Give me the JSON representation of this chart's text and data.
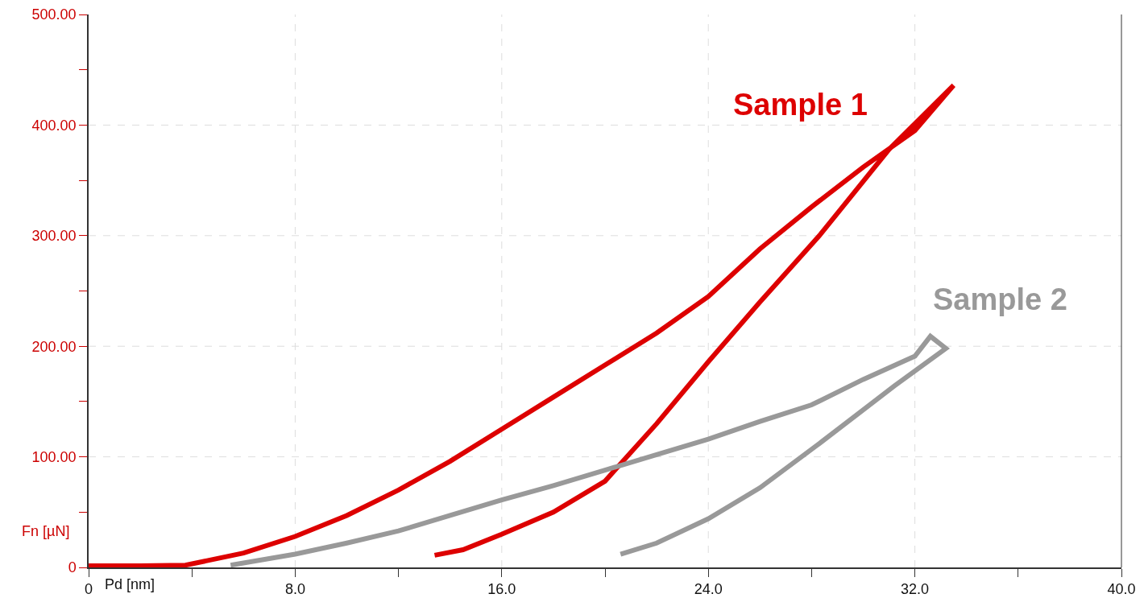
{
  "chart_data": {
    "type": "line",
    "xlabel": "Pd [nm]",
    "ylabel": "Fn [µN]",
    "xlim": [
      0,
      40
    ],
    "ylim": [
      0,
      500
    ],
    "xticks": [
      0,
      {
        "value": 4,
        "label": null
      },
      {
        "value": 8,
        "label": "8.0"
      },
      {
        "value": 12,
        "label": null
      },
      {
        "value": 16,
        "label": "16.0"
      },
      {
        "value": 20,
        "label": null
      },
      {
        "value": 24,
        "label": "24.0"
      },
      {
        "value": 28,
        "label": null
      },
      {
        "value": 32,
        "label": "32.0"
      },
      {
        "value": 36,
        "label": null
      },
      {
        "value": 40,
        "label": "40.0"
      }
    ],
    "yticks": [
      0,
      {
        "value": 50,
        "label": null
      },
      {
        "value": 100,
        "label": "100.00"
      },
      {
        "value": 150,
        "label": null
      },
      {
        "value": 200,
        "label": "200.00"
      },
      {
        "value": 250,
        "label": null
      },
      {
        "value": 300,
        "label": "300.00"
      },
      {
        "value": 350,
        "label": null
      },
      {
        "value": 400,
        "label": "400.00"
      },
      {
        "value": 450,
        "label": null
      },
      {
        "value": 500,
        "label": "500.00"
      }
    ],
    "grid": true,
    "marker": "none",
    "line_style": "solid",
    "series": [
      {
        "name": "Sample 1",
        "color": "#dd0000",
        "x": [
          0,
          2,
          3.75,
          6,
          8,
          10,
          12,
          14,
          16,
          18,
          20,
          22,
          24,
          26,
          28,
          30,
          32,
          33.5,
          31,
          28.3,
          26,
          24,
          22,
          20,
          18,
          16,
          14.5,
          13.4
        ],
        "values": [
          1.5,
          1.5,
          2,
          13,
          28,
          47,
          70,
          96,
          125,
          154,
          183,
          212,
          245,
          288,
          326,
          362,
          395,
          436,
          378,
          300,
          240,
          186,
          130,
          78,
          50,
          30,
          16,
          11
        ]
      },
      {
        "name": "Sample 2",
        "color": "#999999",
        "x": [
          5.5,
          8,
          10,
          12,
          14,
          16,
          18,
          20,
          22,
          24,
          26,
          28,
          30,
          32,
          32.6,
          33.2,
          31.2,
          28.3,
          26,
          24,
          22,
          20.6
        ],
        "values": [
          2,
          12,
          22,
          33,
          47,
          61,
          74,
          88,
          102,
          116,
          132,
          147,
          170,
          191,
          209,
          198,
          164,
          112,
          72,
          44,
          22,
          12
        ]
      }
    ]
  }
}
